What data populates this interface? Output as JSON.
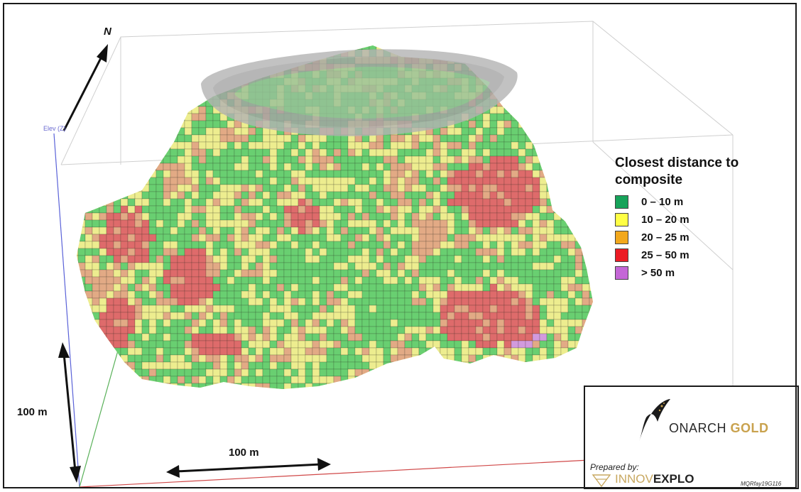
{
  "legend": {
    "title": "Closest distance to\ncomposite",
    "items": [
      {
        "label": "0 – 10 m",
        "color": "#16a35a"
      },
      {
        "label": "10 – 20 m",
        "color": "#ffff44"
      },
      {
        "label": "20 – 25 m",
        "color": "#f2a81d"
      },
      {
        "label": "25 – 50 m",
        "color": "#ec1b24"
      },
      {
        "label": "> 50 m",
        "color": "#c466d6"
      }
    ]
  },
  "block_colors": {
    "green": "#69cf71",
    "yellow": "#eded8f",
    "salmon": "#e2aa85",
    "red": "#de6b6b",
    "purple": "#d29add"
  },
  "pit_color": "#b3b3b3",
  "north_label": "N",
  "axis_label": "Elev (Z)",
  "scale_vertical_label": "100 m",
  "scale_horizontal_label": "100 m",
  "branding": {
    "brand_part1": "ONARCH ",
    "brand_part2": "GOLD",
    "prepared_by": "Prepared by:",
    "innov_part1": "INNOV",
    "innov_part2": "EXPLO",
    "code": "MQRfay19G116"
  }
}
